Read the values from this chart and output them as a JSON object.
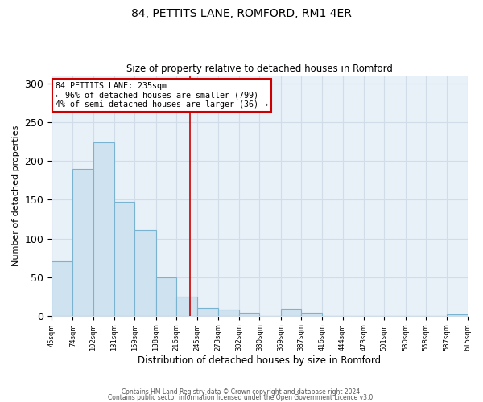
{
  "title": "84, PETTITS LANE, ROMFORD, RM1 4ER",
  "subtitle": "Size of property relative to detached houses in Romford",
  "xlabel": "Distribution of detached houses by size in Romford",
  "ylabel": "Number of detached properties",
  "bar_edges": [
    45,
    74,
    102,
    131,
    159,
    188,
    216,
    245,
    273,
    302,
    330,
    359,
    387,
    416,
    444,
    473,
    501,
    530,
    558,
    587,
    615
  ],
  "bar_heights": [
    70,
    190,
    224,
    147,
    111,
    50,
    25,
    10,
    8,
    4,
    0,
    9,
    4,
    0,
    0,
    0,
    0,
    0,
    0,
    2
  ],
  "bar_color": "#cfe2f0",
  "bar_edgecolor": "#7ab3d0",
  "marker_x": 235,
  "marker_color": "#cc0000",
  "ylim": [
    0,
    310
  ],
  "xlim": [
    45,
    615
  ],
  "annotation_line1": "84 PETTITS LANE: 235sqm",
  "annotation_line2": "← 96% of detached houses are smaller (799)",
  "annotation_line3": "4% of semi-detached houses are larger (36) →",
  "footnote1": "Contains HM Land Registry data © Crown copyright and database right 2024.",
  "footnote2": "Contains public sector information licensed under the Open Government Licence v3.0.",
  "tick_labels": [
    "45sqm",
    "74sqm",
    "102sqm",
    "131sqm",
    "159sqm",
    "188sqm",
    "216sqm",
    "245sqm",
    "273sqm",
    "302sqm",
    "330sqm",
    "359sqm",
    "387sqm",
    "416sqm",
    "444sqm",
    "473sqm",
    "501sqm",
    "530sqm",
    "558sqm",
    "587sqm",
    "615sqm"
  ],
  "tick_positions": [
    45,
    74,
    102,
    131,
    159,
    188,
    216,
    245,
    273,
    302,
    330,
    359,
    387,
    416,
    444,
    473,
    501,
    530,
    558,
    587,
    615
  ],
  "yticks": [
    0,
    50,
    100,
    150,
    200,
    250,
    300
  ],
  "grid_color": "#d0dce8",
  "background_color": "#e8f0f8"
}
